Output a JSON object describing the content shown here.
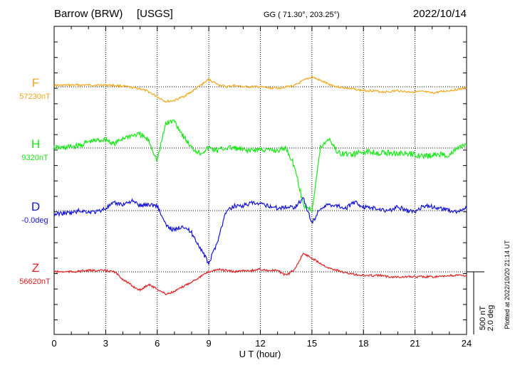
{
  "header": {
    "station": "Barrow (BRW)",
    "institute": "[USGS]",
    "coords": "GG ( 71.30°, 203.25°)",
    "date": "2022/10/14"
  },
  "side_note": "Plotted at 2022/10/20 21:14 UT",
  "scale_bar": {
    "label_nt": "500 nT",
    "label_deg": "2.0 deg"
  },
  "chart_data": {
    "type": "line",
    "xlabel": "U T (hour)",
    "xlim": [
      0,
      24
    ],
    "xticks": [
      0,
      3,
      6,
      9,
      12,
      15,
      18,
      21,
      24
    ],
    "x": [
      0,
      0.5,
      1,
      1.5,
      2,
      2.5,
      3,
      3.5,
      4,
      4.5,
      5,
      5.5,
      6,
      6.5,
      7,
      7.5,
      8,
      8.5,
      9,
      9.5,
      10,
      10.5,
      11,
      11.5,
      12,
      12.5,
      13,
      13.5,
      14,
      14.5,
      15,
      15.5,
      16,
      16.5,
      17,
      17.5,
      18,
      18.5,
      19,
      19.5,
      20,
      20.5,
      21,
      21.5,
      22,
      22.5,
      23,
      23.5,
      24
    ],
    "scale_nt_per_division": 500,
    "scale_deg_per_division": 2.0,
    "series": [
      {
        "name": "F",
        "baseline_label": "57230nT",
        "color": "#f0a820",
        "values": [
          12,
          12,
          14,
          14,
          15,
          13,
          14,
          12,
          4,
          -5,
          -15,
          -40,
          -80,
          -120,
          -110,
          -80,
          -40,
          10,
          60,
          20,
          0,
          10,
          0,
          0,
          0,
          -10,
          -10,
          0,
          10,
          50,
          80,
          50,
          20,
          0,
          -10,
          -20,
          -30,
          -30,
          -40,
          -40,
          -30,
          -40,
          -40,
          -40,
          -50,
          -40,
          -30,
          -20,
          -10
        ]
      },
      {
        "name": "H",
        "baseline_label": "9320nT",
        "color": "#18e818",
        "values": [
          0,
          0,
          10,
          20,
          50,
          60,
          70,
          30,
          80,
          100,
          110,
          60,
          -100,
          200,
          220,
          100,
          0,
          -40,
          0,
          -20,
          0,
          0,
          -20,
          -20,
          -10,
          -20,
          -20,
          0,
          -150,
          -460,
          -500,
          0,
          80,
          -40,
          -50,
          -50,
          -30,
          -30,
          -40,
          -40,
          -40,
          -50,
          -50,
          -70,
          -60,
          -50,
          -60,
          0,
          30
        ]
      },
      {
        "name": "D",
        "baseline_label": "-0.0deg",
        "color": "#1414d8",
        "values": [
          -30,
          -20,
          -20,
          0,
          -10,
          -10,
          20,
          60,
          50,
          80,
          40,
          50,
          40,
          -120,
          -160,
          -120,
          -180,
          -300,
          -430,
          -250,
          -10,
          40,
          40,
          60,
          50,
          40,
          20,
          30,
          30,
          100,
          -100,
          20,
          50,
          40,
          20,
          70,
          30,
          20,
          10,
          0,
          30,
          0,
          -10,
          40,
          30,
          20,
          0,
          -10,
          20
        ]
      },
      {
        "name": "Z",
        "baseline_label": "56620nT",
        "color": "#e02020",
        "values": [
          0,
          0,
          0,
          5,
          10,
          10,
          10,
          0,
          -60,
          -110,
          -150,
          -100,
          -140,
          -180,
          -160,
          -120,
          -80,
          -40,
          0,
          20,
          10,
          0,
          10,
          10,
          20,
          10,
          10,
          -30,
          20,
          150,
          110,
          70,
          30,
          10,
          -10,
          -20,
          -30,
          -30,
          -30,
          -40,
          -40,
          -40,
          -40,
          -40,
          -40,
          -40,
          -30,
          -30,
          -30
        ]
      }
    ]
  }
}
